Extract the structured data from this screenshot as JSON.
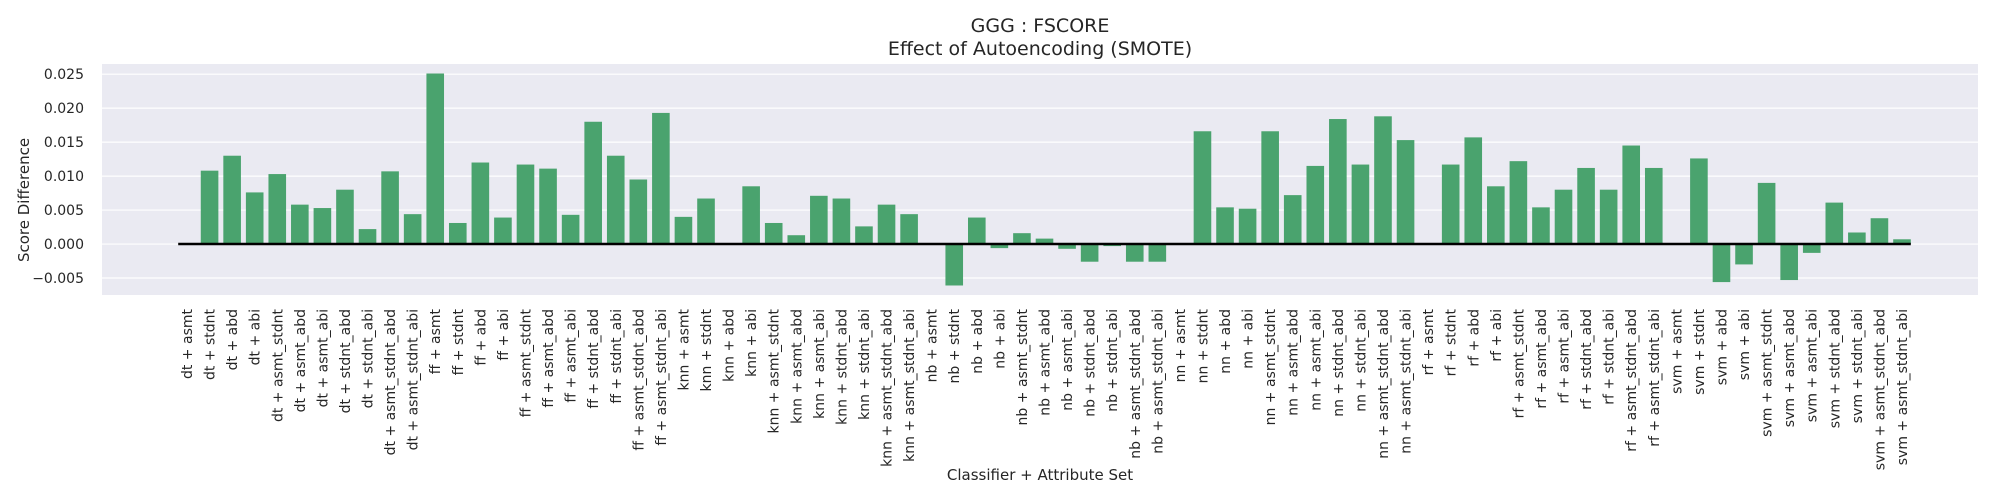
{
  "chart_data": {
    "type": "bar",
    "title": "GGG : FSCORE",
    "subtitle": "Effect of Autoencoding (SMOTE)",
    "xlabel": "Classifier + Attribute Set",
    "ylabel": "Score Difference",
    "ylim": [
      -0.0075,
      0.0265
    ],
    "yticks": [
      -0.005,
      0.0,
      0.005,
      0.01,
      0.015,
      0.02,
      0.025
    ],
    "ytick_labels": [
      "−0.005",
      "0.000",
      "0.005",
      "0.010",
      "0.015",
      "0.020",
      "0.025"
    ],
    "grid": true,
    "bar_color": "#4aa36e",
    "background_color": "#eaeaf2",
    "baseline_color": "#000000",
    "categories": [
      "dt + asmt",
      "dt + stdnt",
      "dt + abd",
      "dt + abi",
      "dt + asmt_stdnt",
      "dt + asmt_abd",
      "dt + asmt_abi",
      "dt + stdnt_abd",
      "dt + stdnt_abi",
      "dt + asmt_stdnt_abd",
      "dt + asmt_stdnt_abi",
      "ff + asmt",
      "ff + stdnt",
      "ff + abd",
      "ff + abi",
      "ff + asmt_stdnt",
      "ff + asmt_abd",
      "ff + asmt_abi",
      "ff + stdnt_abd",
      "ff + stdnt_abi",
      "ff + asmt_stdnt_abd",
      "ff + asmt_stdnt_abi",
      "knn + asmt",
      "knn + stdnt",
      "knn + abd",
      "knn + abi",
      "knn + asmt_stdnt",
      "knn + asmt_abd",
      "knn + asmt_abi",
      "knn + stdnt_abd",
      "knn + stdnt_abi",
      "knn + asmt_stdnt_abd",
      "knn + asmt_stdnt_abi",
      "nb + asmt",
      "nb + stdnt",
      "nb + abd",
      "nb + abi",
      "nb + asmt_stdnt",
      "nb + asmt_abd",
      "nb + asmt_abi",
      "nb + stdnt_abd",
      "nb + stdnt_abi",
      "nb + asmt_stdnt_abd",
      "nb + asmt_stdnt_abi",
      "nn + asmt",
      "nn + stdnt",
      "nn + abd",
      "nn + abi",
      "nn + asmt_stdnt",
      "nn + asmt_abd",
      "nn + asmt_abi",
      "nn + stdnt_abd",
      "nn + stdnt_abi",
      "nn + asmt_stdnt_abd",
      "nn + asmt_stdnt_abi",
      "rf + asmt",
      "rf + stdnt",
      "rf + abd",
      "rf + abi",
      "rf + asmt_stdnt",
      "rf + asmt_abd",
      "rf + asmt_abi",
      "rf + stdnt_abd",
      "rf + stdnt_abi",
      "rf + asmt_stdnt_abd",
      "rf + asmt_stdnt_abi",
      "svm + asmt",
      "svm + stdnt",
      "svm + abd",
      "svm + abi",
      "svm + asmt_stdnt",
      "svm + asmt_abd",
      "svm + asmt_abi",
      "svm + stdnt_abd",
      "svm + stdnt_abi",
      "svm + asmt_stdnt_abd",
      "svm + asmt_stdnt_abi"
    ],
    "values": [
      0.0,
      0.0108,
      0.013,
      0.0076,
      0.0103,
      0.0058,
      0.0053,
      0.008,
      0.0022,
      0.0107,
      0.0044,
      0.0251,
      0.0031,
      0.012,
      0.0039,
      0.0117,
      0.0111,
      0.0043,
      0.018,
      0.013,
      0.0095,
      0.0193,
      0.004,
      0.0067,
      0.0,
      0.0085,
      0.0031,
      0.0013,
      0.0071,
      0.0067,
      0.0026,
      0.0058,
      0.0044,
      0.0,
      -0.0061,
      0.0039,
      -0.0006,
      0.0016,
      0.0008,
      -0.0007,
      -0.0026,
      -0.0003,
      -0.0026,
      -0.0026,
      0.0,
      0.0166,
      0.0054,
      0.0052,
      0.0166,
      0.0072,
      0.0115,
      0.0184,
      0.0117,
      0.0188,
      0.0153,
      0.0,
      0.0117,
      0.0157,
      0.0085,
      0.0122,
      0.0054,
      0.008,
      0.0112,
      0.008,
      0.0145,
      0.0112,
      0.0,
      0.0126,
      -0.0056,
      -0.003,
      0.009,
      -0.0053,
      -0.0013,
      0.0061,
      0.0017,
      0.0038,
      0.0007
    ]
  }
}
